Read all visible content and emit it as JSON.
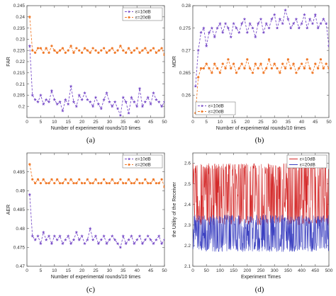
{
  "chart_data": [
    {
      "type": "line",
      "caption": "(a)",
      "xlabel": "Number of experimental rounds/10 times",
      "ylabel": "FAR",
      "xlim": [
        0,
        50
      ],
      "ylim": [
        0.195,
        0.245
      ],
      "xticks": [
        0,
        5,
        10,
        15,
        20,
        25,
        30,
        35,
        40,
        45,
        50
      ],
      "yticks": [
        0.2,
        0.205,
        0.21,
        0.215,
        0.22,
        0.225,
        0.23,
        0.235,
        0.24,
        0.245
      ],
      "legend": {
        "placement": "top-right",
        "entries": [
          "ε=10dB",
          "ε=20dB"
        ]
      },
      "x": [
        1,
        2,
        3,
        4,
        5,
        6,
        7,
        8,
        9,
        10,
        11,
        12,
        13,
        14,
        15,
        16,
        17,
        18,
        19,
        20,
        21,
        22,
        23,
        24,
        25,
        26,
        27,
        28,
        29,
        30,
        31,
        32,
        33,
        34,
        35,
        36,
        37,
        38,
        39,
        40,
        41,
        42,
        43,
        44,
        45,
        46,
        47,
        48,
        49,
        50
      ],
      "series": [
        {
          "name": "ε=10dB",
          "color": "#7a4fc9",
          "marker": "star",
          "dash": true,
          "values": [
            0.227,
            0.205,
            0.203,
            0.202,
            0.205,
            0.201,
            0.203,
            0.202,
            0.207,
            0.203,
            0.201,
            0.202,
            0.198,
            0.203,
            0.201,
            0.209,
            0.202,
            0.2,
            0.205,
            0.203,
            0.206,
            0.203,
            0.202,
            0.2,
            0.204,
            0.201,
            0.199,
            0.203,
            0.206,
            0.202,
            0.2,
            0.202,
            0.199,
            0.196,
            0.204,
            0.202,
            0.197,
            0.204,
            0.202,
            0.2,
            0.208,
            0.2,
            0.202,
            0.204,
            0.201,
            0.206,
            0.203,
            0.202,
            0.2,
            0.202
          ]
        },
        {
          "name": "ε=20dB",
          "color": "#f07a2a",
          "marker": "dot",
          "dash": true,
          "values": [
            0.24,
            0.225,
            0.224,
            0.226,
            0.226,
            0.224,
            0.226,
            0.224,
            0.227,
            0.225,
            0.224,
            0.225,
            0.226,
            0.224,
            0.225,
            0.227,
            0.224,
            0.226,
            0.225,
            0.224,
            0.226,
            0.225,
            0.224,
            0.226,
            0.225,
            0.224,
            0.225,
            0.226,
            0.224,
            0.225,
            0.226,
            0.224,
            0.225,
            0.227,
            0.225,
            0.224,
            0.226,
            0.224,
            0.225,
            0.226,
            0.224,
            0.225,
            0.226,
            0.224,
            0.225,
            0.226,
            0.224,
            0.225,
            0.226,
            0.223
          ]
        }
      ]
    },
    {
      "type": "line",
      "caption": "(b)",
      "xlabel": "Number of experimental rounds/10 times",
      "ylabel": "MDR",
      "xlim": [
        0,
        50
      ],
      "ylim": [
        0.255,
        0.28
      ],
      "xticks": [
        0,
        5,
        10,
        15,
        20,
        25,
        30,
        35,
        40,
        45,
        50
      ],
      "yticks": [
        0.26,
        0.265,
        0.27,
        0.275,
        0.28
      ],
      "legend": {
        "placement": "bottom-left",
        "entries": [
          "ε=10dB",
          "ε=20dB"
        ]
      },
      "x": [
        1,
        2,
        3,
        4,
        5,
        6,
        7,
        8,
        9,
        10,
        11,
        12,
        13,
        14,
        15,
        16,
        17,
        18,
        19,
        20,
        21,
        22,
        23,
        24,
        25,
        26,
        27,
        28,
        29,
        30,
        31,
        32,
        33,
        34,
        35,
        36,
        37,
        38,
        39,
        40,
        41,
        42,
        43,
        44,
        45,
        46,
        47,
        48,
        49,
        50
      ],
      "series": [
        {
          "name": "ε=10dB",
          "color": "#7a4fc9",
          "marker": "star",
          "dash": true,
          "values": [
            0.262,
            0.27,
            0.274,
            0.275,
            0.271,
            0.274,
            0.275,
            0.273,
            0.275,
            0.276,
            0.274,
            0.276,
            0.275,
            0.273,
            0.276,
            0.275,
            0.274,
            0.276,
            0.277,
            0.274,
            0.276,
            0.275,
            0.273,
            0.276,
            0.277,
            0.274,
            0.276,
            0.275,
            0.277,
            0.278,
            0.275,
            0.277,
            0.276,
            0.279,
            0.277,
            0.275,
            0.276,
            0.277,
            0.275,
            0.276,
            0.278,
            0.275,
            0.277,
            0.276,
            0.278,
            0.275,
            0.276,
            0.277,
            0.276,
            0.271
          ]
        },
        {
          "name": "ε=20dB",
          "color": "#f07a2a",
          "marker": "dot",
          "dash": true,
          "values": [
            0.256,
            0.264,
            0.266,
            0.266,
            0.267,
            0.266,
            0.265,
            0.267,
            0.266,
            0.265,
            0.267,
            0.266,
            0.268,
            0.266,
            0.267,
            0.265,
            0.266,
            0.267,
            0.266,
            0.268,
            0.266,
            0.265,
            0.267,
            0.266,
            0.267,
            0.265,
            0.266,
            0.268,
            0.266,
            0.267,
            0.266,
            0.265,
            0.267,
            0.266,
            0.268,
            0.266,
            0.267,
            0.265,
            0.266,
            0.267,
            0.266,
            0.268,
            0.266,
            0.265,
            0.267,
            0.266,
            0.268,
            0.266,
            0.267,
            0.266
          ]
        }
      ]
    },
    {
      "type": "line",
      "caption": "(c)",
      "xlabel": "Number of experimental rounds/10 times",
      "ylabel": "AER",
      "xlim": [
        0,
        50
      ],
      "ylim": [
        0.47,
        0.5
      ],
      "xticks": [
        0,
        5,
        10,
        15,
        20,
        25,
        30,
        35,
        40,
        45,
        50
      ],
      "yticks": [
        0.47,
        0.475,
        0.48,
        0.485,
        0.49,
        0.495
      ],
      "legend": {
        "placement": "top-right",
        "entries": [
          "ε=10dB",
          "ε=20dB"
        ]
      },
      "x": [
        1,
        2,
        3,
        4,
        5,
        6,
        7,
        8,
        9,
        10,
        11,
        12,
        13,
        14,
        15,
        16,
        17,
        18,
        19,
        20,
        21,
        22,
        23,
        24,
        25,
        26,
        27,
        28,
        29,
        30,
        31,
        32,
        33,
        34,
        35,
        36,
        37,
        38,
        39,
        40,
        41,
        42,
        43,
        44,
        45,
        46,
        47,
        48,
        49,
        50
      ],
      "series": [
        {
          "name": "ε=10dB",
          "color": "#7a4fc9",
          "marker": "star",
          "dash": true,
          "values": [
            0.489,
            0.478,
            0.477,
            0.478,
            0.476,
            0.479,
            0.477,
            0.478,
            0.476,
            0.478,
            0.477,
            0.478,
            0.476,
            0.477,
            0.478,
            0.476,
            0.477,
            0.479,
            0.477,
            0.478,
            0.476,
            0.477,
            0.48,
            0.477,
            0.478,
            0.476,
            0.477,
            0.478,
            0.476,
            0.477,
            0.478,
            0.477,
            0.476,
            0.475,
            0.478,
            0.476,
            0.477,
            0.478,
            0.476,
            0.477,
            0.478,
            0.476,
            0.477,
            0.478,
            0.477,
            0.476,
            0.477,
            0.478,
            0.476,
            0.477
          ]
        },
        {
          "name": "ε=20dB",
          "color": "#f07a2a",
          "marker": "dot",
          "dash": true,
          "values": [
            0.497,
            0.493,
            0.492,
            0.493,
            0.492,
            0.493,
            0.492,
            0.492,
            0.493,
            0.492,
            0.493,
            0.492,
            0.492,
            0.493,
            0.492,
            0.493,
            0.492,
            0.492,
            0.493,
            0.492,
            0.492,
            0.493,
            0.492,
            0.492,
            0.493,
            0.492,
            0.492,
            0.493,
            0.492,
            0.492,
            0.493,
            0.492,
            0.492,
            0.493,
            0.492,
            0.492,
            0.493,
            0.492,
            0.492,
            0.493,
            0.492,
            0.492,
            0.493,
            0.492,
            0.492,
            0.493,
            0.492,
            0.492,
            0.493,
            0.491
          ]
        }
      ]
    },
    {
      "type": "line",
      "caption": "(d)",
      "xlabel": "Experiment Times",
      "ylabel": "the Utility of the Receiver",
      "xlim": [
        0,
        500
      ],
      "ylim": [
        2.1,
        2.65
      ],
      "xticks": [
        0,
        50,
        100,
        150,
        200,
        250,
        300,
        350,
        400,
        450,
        500
      ],
      "yticks": [
        2.1,
        2.2,
        2.3,
        2.4,
        2.5,
        2.6
      ],
      "legend": {
        "placement": "top-right",
        "entries": [
          "ε=10dB",
          "ε=20dB"
        ]
      },
      "series": [
        {
          "name": "ε=10dB",
          "color": "#d42a2a",
          "low": 2.3,
          "high": 2.6,
          "mean": 2.45
        },
        {
          "name": "ε=20dB",
          "color": "#3a3fc0",
          "low": 2.17,
          "high": 2.35,
          "mean": 2.26
        }
      ]
    }
  ]
}
